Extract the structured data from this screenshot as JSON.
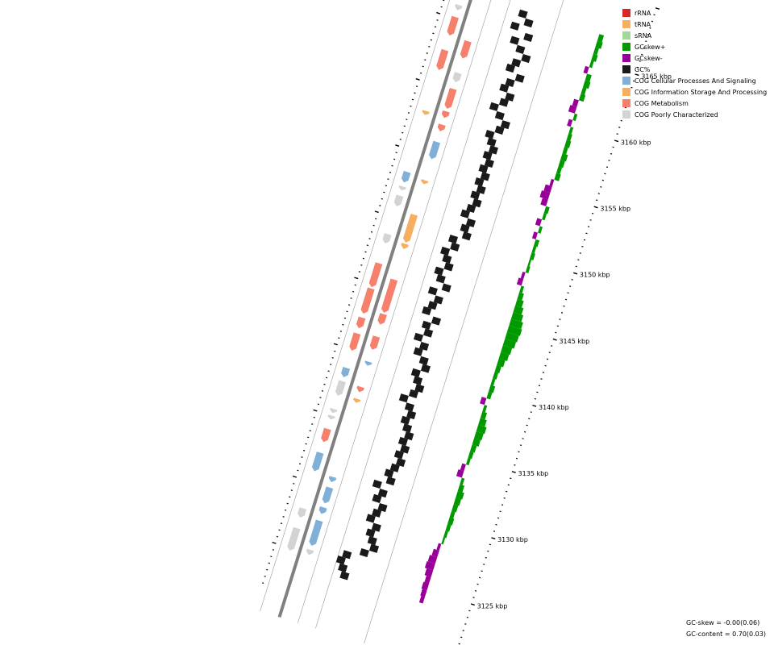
{
  "legend": [
    {
      "label": "rRNA",
      "color": "#d62728"
    },
    {
      "label": "tRNA",
      "color": "#f6ae61"
    },
    {
      "label": "sRNA",
      "color": "#a1d99b"
    },
    {
      "label": "GCskew+",
      "color": "#009a00"
    },
    {
      "label": "GCskew-",
      "color": "#990099"
    },
    {
      "label": "GC%",
      "color": "#1a1a1a"
    },
    {
      "label": "COG Cellular Processes And Signaling",
      "color": "#80b0d8"
    },
    {
      "label": "COG Information Storage And Processing",
      "color": "#f6ae61"
    },
    {
      "label": "COG Metabolism",
      "color": "#f6806c"
    },
    {
      "label": "COG Poorly Characterized",
      "color": "#d3d3d3"
    }
  ],
  "kbp_labels": [
    {
      "text": "3165 kbp",
      "kbp": 3165
    },
    {
      "text": "3160 kbp",
      "kbp": 3160
    },
    {
      "text": "3155 kbp",
      "kbp": 3155
    },
    {
      "text": "3150 kbp",
      "kbp": 3150
    },
    {
      "text": "3145 kbp",
      "kbp": 3145
    },
    {
      "text": "3140 kbp",
      "kbp": 3140
    },
    {
      "text": "3135 kbp",
      "kbp": 3135
    },
    {
      "text": "3130 kbp",
      "kbp": 3130
    },
    {
      "text": "3125 kbp",
      "kbp": 3125
    }
  ],
  "stats": {
    "gc_skew": "GC-skew = -0.00(0.06)",
    "gc_content": "GC-content = 0.70(0.03)"
  },
  "colors": {
    "backbone": "#808080",
    "gc_content": "#1a1a1a",
    "skew_pos": "#009a00",
    "skew_neg": "#990099",
    "ring_line": "#999999"
  },
  "features_fwd": [
    {
      "start": 3163.7,
      "end": 3162.4,
      "cog": "metabolism"
    },
    {
      "start": 3161.3,
      "end": 3160.6,
      "cog": "poorly"
    },
    {
      "start": 3160.1,
      "end": 3158.6,
      "cog": "metabolism"
    },
    {
      "start": 3158.4,
      "end": 3157.9,
      "cog": "metabolism"
    },
    {
      "start": 3157.4,
      "end": 3156.9,
      "cog": "metabolism"
    },
    {
      "start": 3156.1,
      "end": 3154.8,
      "cog": "cellular"
    },
    {
      "start": 3153.2,
      "end": 3152.9,
      "cog": "information"
    },
    {
      "start": 3150.6,
      "end": 3148.5,
      "cog": "information"
    },
    {
      "start": 3148.4,
      "end": 3148.0,
      "cog": "information"
    },
    {
      "start": 3145.7,
      "end": 3143.2,
      "cog": "metabolism"
    },
    {
      "start": 3143.1,
      "end": 3142.3,
      "cog": "metabolism"
    },
    {
      "start": 3141.4,
      "end": 3140.4,
      "cog": "metabolism"
    },
    {
      "start": 3139.5,
      "end": 3139.2,
      "cog": "cellular"
    },
    {
      "start": 3137.6,
      "end": 3137.2,
      "cog": "metabolism"
    },
    {
      "start": 3136.7,
      "end": 3136.4,
      "cog": "information"
    },
    {
      "start": 3130.8,
      "end": 3130.4,
      "cog": "cellular"
    },
    {
      "start": 3130.0,
      "end": 3128.8,
      "cog": "cellular"
    },
    {
      "start": 3128.5,
      "end": 3128.0,
      "cog": "cellular"
    },
    {
      "start": 3127.5,
      "end": 3125.6,
      "cog": "cellular"
    },
    {
      "start": 3125.3,
      "end": 3124.9,
      "cog": "poorly"
    }
  ],
  "features_rev": [
    {
      "start": 3166.0,
      "end": 3165.6,
      "cog": "poorly"
    },
    {
      "start": 3165.1,
      "end": 3163.7,
      "cog": "metabolism"
    },
    {
      "start": 3162.6,
      "end": 3161.1,
      "cog": "metabolism"
    },
    {
      "start": 3158.0,
      "end": 3157.7,
      "cog": "information"
    },
    {
      "start": 3153.4,
      "end": 3152.6,
      "cog": "cellular"
    },
    {
      "start": 3152.3,
      "end": 3152.0,
      "cog": "poorly"
    },
    {
      "start": 3151.6,
      "end": 3150.8,
      "cog": "poorly"
    },
    {
      "start": 3148.7,
      "end": 3148.0,
      "cog": "poorly"
    },
    {
      "start": 3146.5,
      "end": 3144.7,
      "cog": "metabolism"
    },
    {
      "start": 3144.6,
      "end": 3142.7,
      "cog": "metabolism"
    },
    {
      "start": 3142.4,
      "end": 3141.6,
      "cog": "metabolism"
    },
    {
      "start": 3141.2,
      "end": 3139.9,
      "cog": "metabolism"
    },
    {
      "start": 3138.6,
      "end": 3137.9,
      "cog": "cellular"
    },
    {
      "start": 3137.6,
      "end": 3136.5,
      "cog": "poorly"
    },
    {
      "start": 3135.5,
      "end": 3135.2,
      "cog": "poorly"
    },
    {
      "start": 3135.0,
      "end": 3134.7,
      "cog": "poorly"
    },
    {
      "start": 3134.0,
      "end": 3133.0,
      "cog": "metabolism"
    },
    {
      "start": 3132.2,
      "end": 3130.8,
      "cog": "cellular"
    },
    {
      "start": 3128.0,
      "end": 3127.3,
      "cog": "poorly"
    },
    {
      "start": 3126.5,
      "end": 3124.8,
      "cog": "poorly"
    }
  ],
  "gc_content": [
    [
      3166.5,
      0.66
    ],
    [
      3166.0,
      0.7
    ],
    [
      3165.5,
      0.64
    ],
    [
      3165.0,
      0.72
    ],
    [
      3164.5,
      0.66
    ],
    [
      3164.0,
      0.7
    ],
    [
      3163.5,
      0.74
    ],
    [
      3163.0,
      0.7
    ],
    [
      3162.5,
      0.68
    ],
    [
      3162.0,
      0.74
    ],
    [
      3161.5,
      0.7
    ],
    [
      3161.0,
      0.68
    ],
    [
      3160.5,
      0.72
    ],
    [
      3160.0,
      0.7
    ],
    [
      3159.5,
      0.66
    ],
    [
      3159.0,
      0.7
    ],
    [
      3158.5,
      0.74
    ],
    [
      3158.0,
      0.72
    ],
    [
      3157.5,
      0.68
    ],
    [
      3157.0,
      0.7
    ],
    [
      3156.5,
      0.72
    ],
    [
      3156.0,
      0.7
    ],
    [
      3155.5,
      0.72
    ],
    [
      3155.0,
      0.7
    ],
    [
      3154.5,
      0.72
    ],
    [
      3154.0,
      0.7
    ],
    [
      3153.5,
      0.72
    ],
    [
      3153.0,
      0.7
    ],
    [
      3152.5,
      0.72
    ],
    [
      3152.0,
      0.7
    ],
    [
      3151.5,
      0.68
    ],
    [
      3151.0,
      0.72
    ],
    [
      3150.5,
      0.7
    ],
    [
      3150.0,
      0.72
    ],
    [
      3149.5,
      0.66
    ],
    [
      3149.0,
      0.68
    ],
    [
      3148.5,
      0.64
    ],
    [
      3148.0,
      0.66
    ],
    [
      3147.5,
      0.68
    ],
    [
      3147.0,
      0.64
    ],
    [
      3146.5,
      0.66
    ],
    [
      3146.0,
      0.7
    ],
    [
      3145.5,
      0.64
    ],
    [
      3145.0,
      0.68
    ],
    [
      3144.5,
      0.66
    ],
    [
      3144.0,
      0.64
    ],
    [
      3143.5,
      0.7
    ],
    [
      3143.0,
      0.66
    ],
    [
      3142.5,
      0.68
    ],
    [
      3142.0,
      0.64
    ],
    [
      3141.5,
      0.68
    ],
    [
      3141.0,
      0.66
    ],
    [
      3140.5,
      0.7
    ],
    [
      3140.0,
      0.72
    ],
    [
      3139.5,
      0.68
    ],
    [
      3139.0,
      0.7
    ],
    [
      3138.5,
      0.72
    ],
    [
      3138.0,
      0.7
    ],
    [
      3137.5,
      0.66
    ],
    [
      3137.0,
      0.7
    ],
    [
      3136.5,
      0.72
    ],
    [
      3136.0,
      0.7
    ],
    [
      3135.5,
      0.72
    ],
    [
      3135.0,
      0.74
    ],
    [
      3134.5,
      0.72
    ],
    [
      3134.0,
      0.74
    ],
    [
      3133.5,
      0.72
    ],
    [
      3133.0,
      0.74
    ],
    [
      3132.5,
      0.72
    ],
    [
      3132.0,
      0.7
    ],
    [
      3131.5,
      0.72
    ],
    [
      3131.0,
      0.66
    ],
    [
      3130.5,
      0.7
    ],
    [
      3130.0,
      0.68
    ],
    [
      3129.5,
      0.72
    ],
    [
      3129.0,
      0.7
    ],
    [
      3128.5,
      0.68
    ],
    [
      3128.0,
      0.72
    ],
    [
      3127.5,
      0.7
    ],
    [
      3127.0,
      0.72
    ],
    [
      3126.5,
      0.74
    ],
    [
      3126.0,
      0.7
    ],
    [
      3125.5,
      0.62
    ],
    [
      3125.0,
      0.6
    ],
    [
      3124.5,
      0.62
    ],
    [
      3124.0,
      0.64
    ]
  ],
  "gc_skew": [
    [
      3166.5,
      0.05
    ],
    [
      3166.0,
      0.06
    ],
    [
      3165.5,
      0.04
    ],
    [
      3165.0,
      0.05
    ],
    [
      3164.5,
      0.03
    ],
    [
      3164.0,
      -0.04
    ],
    [
      3163.5,
      0.05
    ],
    [
      3163.0,
      0.06
    ],
    [
      3162.5,
      0.04
    ],
    [
      3162.0,
      0.05
    ],
    [
      3161.5,
      -0.05
    ],
    [
      3161.0,
      -0.07
    ],
    [
      3160.5,
      0.03
    ],
    [
      3160.0,
      -0.04
    ],
    [
      3159.5,
      0.03
    ],
    [
      3159.0,
      0.04
    ],
    [
      3158.5,
      0.05
    ],
    [
      3158.0,
      0.04
    ],
    [
      3157.5,
      0.06
    ],
    [
      3157.0,
      0.05
    ],
    [
      3156.5,
      0.04
    ],
    [
      3156.0,
      0.05
    ],
    [
      3155.5,
      -0.03
    ],
    [
      3155.0,
      -0.07
    ],
    [
      3154.5,
      -0.09
    ],
    [
      3154.0,
      -0.06
    ],
    [
      3153.5,
      0.04
    ],
    [
      3153.0,
      0.03
    ],
    [
      3152.5,
      -0.05
    ],
    [
      3152.0,
      0.03
    ],
    [
      3151.5,
      -0.04
    ],
    [
      3151.0,
      0.04
    ],
    [
      3150.5,
      0.03
    ],
    [
      3150.0,
      0.04
    ],
    [
      3149.5,
      0.02
    ],
    [
      3149.0,
      0.03
    ],
    [
      3148.5,
      -0.03
    ],
    [
      3148.0,
      -0.05
    ],
    [
      3147.5,
      0.03
    ],
    [
      3147.0,
      0.05
    ],
    [
      3146.5,
      0.07
    ],
    [
      3146.0,
      0.09
    ],
    [
      3145.5,
      0.11
    ],
    [
      3145.0,
      0.13
    ],
    [
      3144.5,
      0.14
    ],
    [
      3144.0,
      0.13
    ],
    [
      3143.5,
      0.12
    ],
    [
      3143.0,
      0.1
    ],
    [
      3142.5,
      0.09
    ],
    [
      3142.0,
      0.07
    ],
    [
      3141.5,
      0.05
    ],
    [
      3141.0,
      0.04
    ],
    [
      3140.5,
      0.03
    ],
    [
      3140.0,
      0.05
    ],
    [
      3139.5,
      0.04
    ],
    [
      3139.0,
      -0.05
    ],
    [
      3138.5,
      0.03
    ],
    [
      3138.0,
      0.05
    ],
    [
      3137.5,
      0.07
    ],
    [
      3137.0,
      0.09
    ],
    [
      3136.5,
      0.08
    ],
    [
      3136.0,
      0.07
    ],
    [
      3135.5,
      0.05
    ],
    [
      3135.0,
      0.04
    ],
    [
      3134.5,
      0.03
    ],
    [
      3134.0,
      -0.04
    ],
    [
      3133.5,
      -0.06
    ],
    [
      3133.0,
      0.03
    ],
    [
      3132.5,
      0.05
    ],
    [
      3132.0,
      0.07
    ],
    [
      3131.5,
      0.06
    ],
    [
      3131.0,
      0.05
    ],
    [
      3130.5,
      0.04
    ],
    [
      3130.0,
      0.05
    ],
    [
      3129.5,
      0.04
    ],
    [
      3129.0,
      0.03
    ],
    [
      3128.5,
      0.02
    ],
    [
      3128.0,
      -0.03
    ],
    [
      3127.5,
      -0.06
    ],
    [
      3127.0,
      -0.08
    ],
    [
      3126.5,
      -0.09
    ],
    [
      3126.0,
      -0.07
    ],
    [
      3125.5,
      -0.05
    ],
    [
      3125.0,
      -0.06
    ],
    [
      3124.5,
      -0.05
    ],
    [
      3124.0,
      -0.04
    ]
  ]
}
